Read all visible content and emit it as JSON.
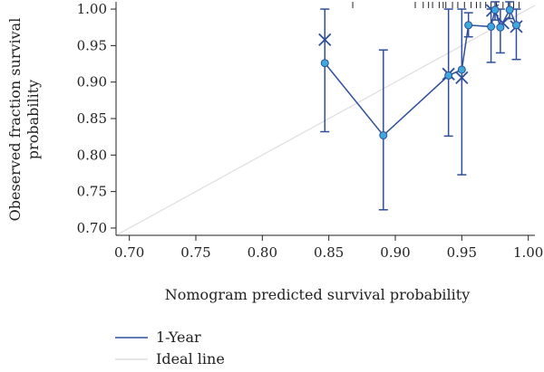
{
  "chart_data": {
    "type": "scatter",
    "xlabel": "Nomogram predicted survival probability",
    "ylabel_lines": [
      "Obeserved fraction survival",
      "probability"
    ],
    "xlim": [
      0.69,
      1.005
    ],
    "ylim": [
      0.69,
      1.01
    ],
    "x_ticks": [
      0.7,
      0.75,
      0.8,
      0.85,
      0.9,
      0.95,
      1.0
    ],
    "x_tick_labels": [
      "0.70",
      "0.75",
      "0.80",
      "0.85",
      "0.90",
      "0.95",
      "1.00"
    ],
    "y_ticks": [
      0.7,
      0.75,
      0.8,
      0.85,
      0.9,
      0.95,
      1.0
    ],
    "y_tick_labels": [
      "0.70",
      "0.75",
      "0.80",
      "0.85",
      "0.90",
      "0.95",
      "1.00"
    ],
    "grid": false,
    "legend_position": "bottom-left",
    "series": [
      {
        "name": "1-Year",
        "color": "#2e4f9a",
        "marker_color": "#3ea8dc",
        "x": [
          0.847,
          0.891,
          0.94,
          0.95,
          0.955,
          0.972,
          0.975,
          0.979,
          0.986,
          0.991
        ],
        "y": [
          0.926,
          0.827,
          0.909,
          0.917,
          0.978,
          0.976,
          0.999,
          0.975,
          0.999,
          0.978
        ],
        "error_low": [
          0.832,
          0.725,
          0.826,
          0.773,
          0.962,
          0.927,
          0.985,
          0.94,
          0.987,
          0.931
        ],
        "error_high": [
          1.0,
          0.944,
          1.0,
          1.0,
          0.995,
          1.0,
          1.01,
          1.0,
          1.01,
          1.0
        ],
        "corrected_x": [
          0.847,
          0.95,
          0.94,
          0.973,
          0.981,
          0.991
        ],
        "corrected_y": [
          0.958,
          0.906,
          0.911,
          0.998,
          0.981,
          0.976
        ]
      },
      {
        "name": "Ideal line",
        "color": "#dedede",
        "x": [
          0.69,
          1.005
        ],
        "y": [
          0.69,
          1.005
        ]
      }
    ],
    "rug_x": [
      0.868,
      0.915,
      0.921,
      0.925,
      0.928,
      0.933,
      0.936,
      0.938,
      0.943,
      0.947,
      0.952,
      0.957,
      0.961,
      0.964,
      0.968,
      0.972,
      0.976,
      0.981,
      0.985,
      0.989,
      0.993
    ]
  }
}
